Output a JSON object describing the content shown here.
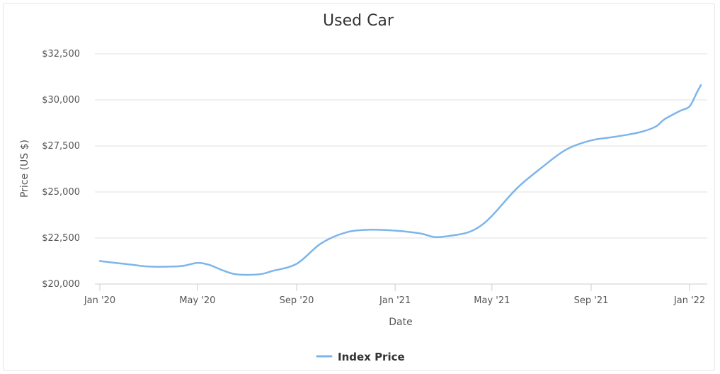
{
  "chart_data": {
    "type": "line",
    "title": "Used Car",
    "xlabel": "Date",
    "ylabel": "Price (US $)",
    "x_tick_labels": [
      "Jan '20",
      "May '20",
      "Sep '20",
      "Jan '21",
      "May '21",
      "Sep '21",
      "Jan '22"
    ],
    "x_ticks": [
      "2020-01",
      "2020-05",
      "2020-09",
      "2021-01",
      "2021-05",
      "2021-09",
      "2022-01"
    ],
    "y_tick_labels": [
      "$20,000",
      "$22,500",
      "$25,000",
      "$27,500",
      "$30,000",
      "$32,500"
    ],
    "y_ticks": [
      20000,
      22500,
      25000,
      27500,
      30000,
      32500
    ],
    "ylim": [
      20000,
      32500
    ],
    "xlim": [
      "2020-01",
      "2022-01-15"
    ],
    "grid": true,
    "legend": "bottom-center",
    "series": [
      {
        "name": "Index Price",
        "color": "#7cb5ec",
        "points": [
          [
            "2020-01-01",
            21250
          ],
          [
            "2020-01-20",
            21150
          ],
          [
            "2020-02-10",
            21050
          ],
          [
            "2020-03-01",
            20950
          ],
          [
            "2020-04-01",
            20950
          ],
          [
            "2020-04-15",
            21000
          ],
          [
            "2020-05-01",
            21150
          ],
          [
            "2020-05-15",
            21050
          ],
          [
            "2020-06-01",
            20750
          ],
          [
            "2020-06-15",
            20550
          ],
          [
            "2020-07-01",
            20500
          ],
          [
            "2020-07-20",
            20550
          ],
          [
            "2020-08-01",
            20700
          ],
          [
            "2020-09-01",
            21100
          ],
          [
            "2020-10-01",
            22200
          ],
          [
            "2020-11-01",
            22800
          ],
          [
            "2020-12-01",
            22950
          ],
          [
            "2021-01-01",
            22900
          ],
          [
            "2021-02-01",
            22750
          ],
          [
            "2021-02-20",
            22550
          ],
          [
            "2021-03-15",
            22650
          ],
          [
            "2021-04-01",
            22800
          ],
          [
            "2021-04-15",
            23100
          ],
          [
            "2021-05-01",
            23700
          ],
          [
            "2021-06-01",
            25200
          ],
          [
            "2021-07-01",
            26300
          ],
          [
            "2021-08-01",
            27300
          ],
          [
            "2021-09-01",
            27800
          ],
          [
            "2021-10-01",
            28000
          ],
          [
            "2021-11-01",
            28250
          ],
          [
            "2021-11-20",
            28550
          ],
          [
            "2021-12-01",
            28950
          ],
          [
            "2021-12-20",
            29400
          ],
          [
            "2022-01-01",
            29650
          ],
          [
            "2022-01-10",
            30400
          ],
          [
            "2022-01-15",
            30800
          ]
        ]
      }
    ]
  }
}
